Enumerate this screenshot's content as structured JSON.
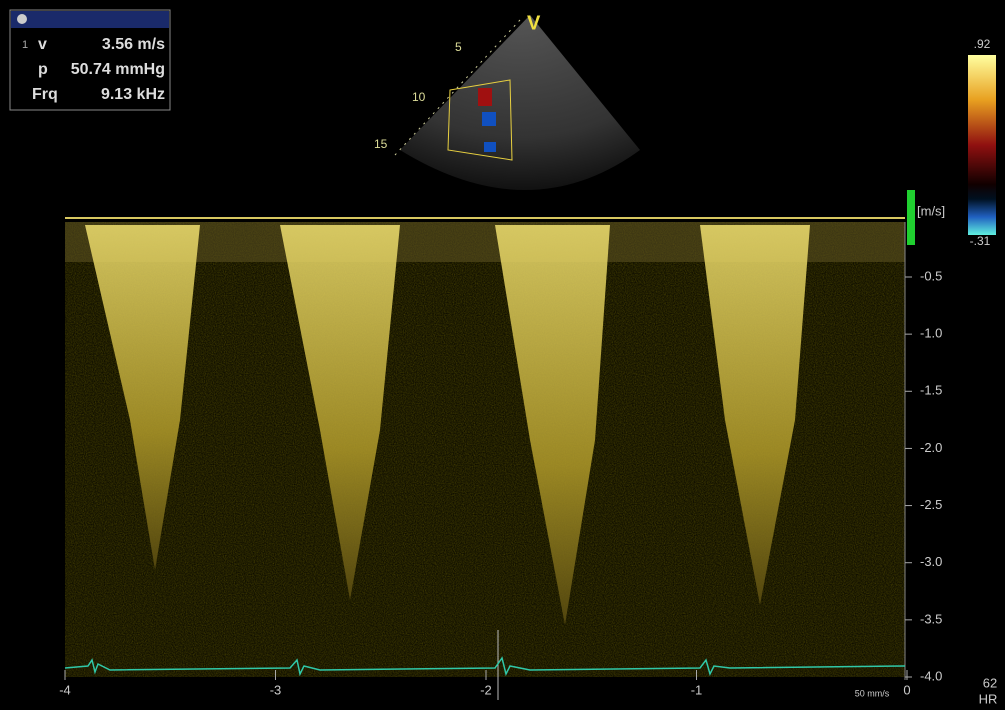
{
  "measurements": [
    {
      "index": "1",
      "label": "v",
      "value": "3.56 m/s"
    },
    {
      "label": "p",
      "value": "50.74 mmHg"
    },
    {
      "label": "Frq",
      "value": "9.13 kHz"
    }
  ],
  "sector": {
    "depth_labels": [
      "5",
      "10",
      "15"
    ],
    "marker": "V"
  },
  "color_bar": {
    "max": ".92",
    "min": "-.31"
  },
  "velocity_axis": {
    "unit": "[m/s]",
    "ticks": [
      "-0.5",
      "-1.0",
      "-1.5",
      "-2.0",
      "-2.5",
      "-3.0",
      "-3.5",
      "-4.0"
    ]
  },
  "time_axis": {
    "ticks": [
      "-4",
      "-3",
      "-2",
      "-1",
      "0"
    ]
  },
  "sweep_speed": "50 mm/s",
  "heart_rate": {
    "value": "62",
    "label": "HR"
  }
}
